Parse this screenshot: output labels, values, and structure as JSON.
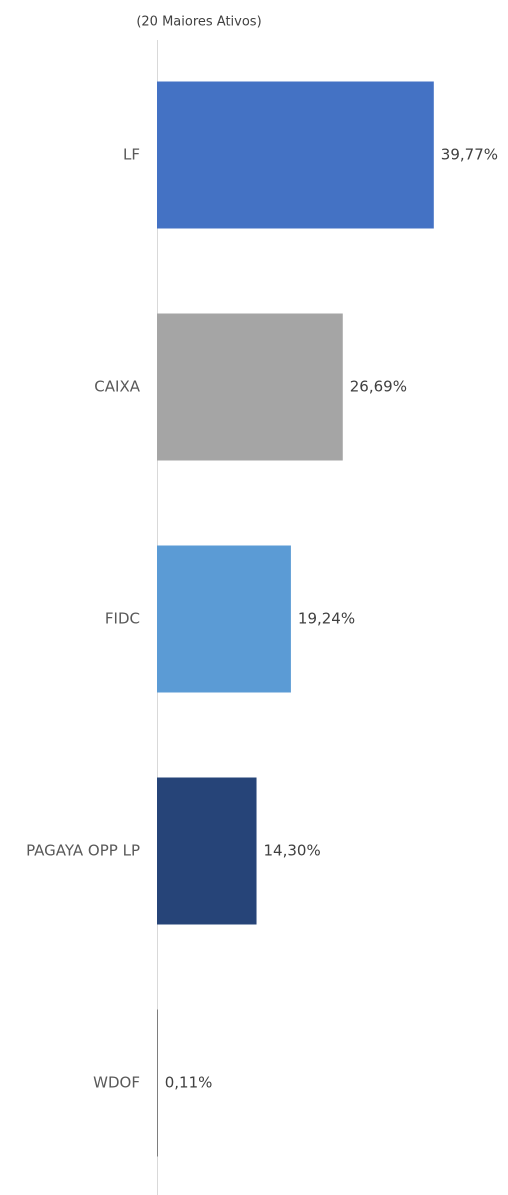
{
  "chart_data": {
    "type": "bar",
    "orientation": "horizontal",
    "title": "(20 Maiores Ativos)",
    "categories": [
      "LF",
      "CAIXA",
      "FIDC",
      "PAGAYA OPP LP",
      "WDOF"
    ],
    "values": [
      39.77,
      26.69,
      19.24,
      14.3,
      0.11
    ],
    "value_labels": [
      "39,77%",
      "26,69%",
      "19,24%",
      "14,30%",
      "0,11%"
    ],
    "colors": [
      "#4472c4",
      "#a5a5a5",
      "#5b9bd5",
      "#264478",
      "#636363"
    ],
    "xlim": [
      0,
      50
    ]
  }
}
